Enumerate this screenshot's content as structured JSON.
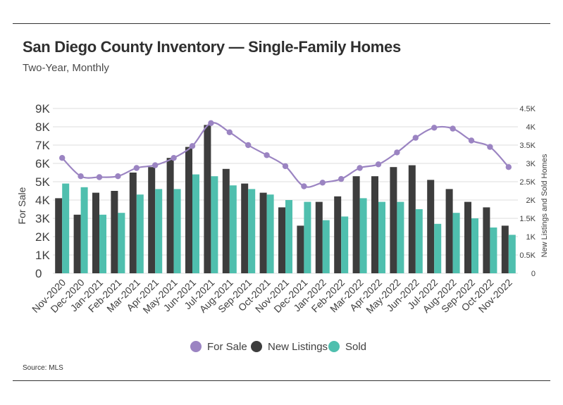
{
  "title": "San Diego County Inventory — Single-Family Homes",
  "subtitle": "Two-Year, Monthly",
  "source": "Source: MLS",
  "colors": {
    "for_sale": "#9b84c2",
    "new_listings": "#3d3d3d",
    "sold": "#4fbfae",
    "grid": "#dddddd"
  },
  "chart_data": {
    "type": "bar+line",
    "title": "San Diego County Inventory — Single-Family Homes",
    "subtitle": "Two-Year, Monthly",
    "categories": [
      "Nov-2020",
      "Dec-2020",
      "Jan-2021",
      "Feb-2021",
      "Mar-2021",
      "Apr-2021",
      "May-2021",
      "Jun-2021",
      "Jul-2021",
      "Aug-2021",
      "Sep-2021",
      "Oct-2021",
      "Nov-2021",
      "Dec-2021",
      "Jan-2022",
      "Feb-2022",
      "Mar-2022",
      "Apr-2022",
      "May-2022",
      "Jun-2022",
      "Jul-2022",
      "Aug-2022",
      "Sep-2022",
      "Oct-2022",
      "Nov-2022"
    ],
    "left_axis": {
      "label": "For Sale",
      "range": [
        0,
        9000
      ],
      "ticks": [
        "0",
        "1K",
        "2K",
        "3K",
        "4K",
        "5K",
        "6K",
        "7K",
        "8K",
        "9K"
      ]
    },
    "right_axis": {
      "label": "New Listings and Sold Homes",
      "range": [
        0,
        4500
      ],
      "ticks": [
        "0",
        "0.5K",
        "1K",
        "1.5K",
        "2K",
        "2.5K",
        "3K",
        "3.5K",
        "4K",
        "4.5K"
      ]
    },
    "series": [
      {
        "name": "For Sale",
        "kind": "line",
        "axis": "left",
        "values": [
          6300,
          5300,
          5250,
          5300,
          5750,
          5900,
          6300,
          6950,
          8200,
          7700,
          7000,
          6450,
          5850,
          4750,
          4950,
          5150,
          5750,
          5950,
          6600,
          7400,
          7950,
          7900,
          7250,
          6900,
          5800
        ]
      },
      {
        "name": "New Listings",
        "kind": "bar",
        "axis": "right",
        "values": [
          2050,
          1600,
          2200,
          2250,
          2750,
          2900,
          3150,
          3450,
          4050,
          2850,
          2450,
          2200,
          1800,
          1300,
          1950,
          2100,
          2650,
          2650,
          2900,
          2950,
          2550,
          2300,
          1950,
          1800,
          1300
        ]
      },
      {
        "name": "Sold",
        "kind": "bar",
        "axis": "right",
        "values": [
          2450,
          2350,
          1600,
          1650,
          2150,
          2300,
          2300,
          2700,
          2650,
          2400,
          2300,
          2150,
          2000,
          1950,
          1450,
          1550,
          2050,
          1950,
          1950,
          1750,
          1350,
          1650,
          1500,
          1250,
          1050
        ]
      }
    ],
    "legend": {
      "position": "bottom",
      "entries": [
        "For Sale",
        "New Listings",
        "Sold"
      ]
    },
    "grid": true
  }
}
